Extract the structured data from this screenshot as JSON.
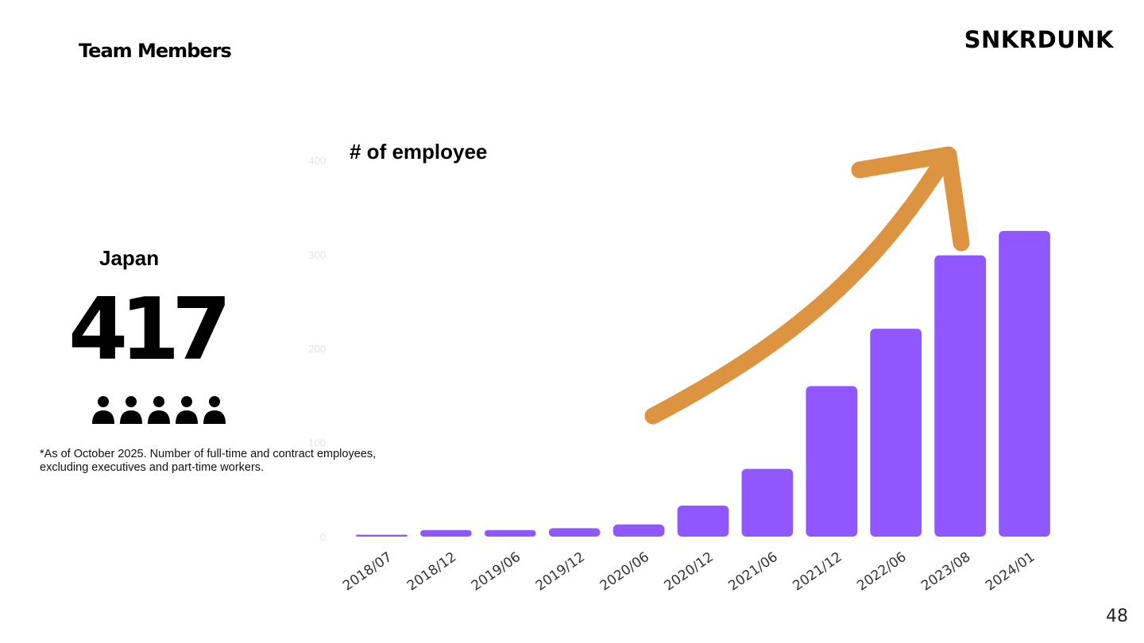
{
  "slide": {
    "title": "Team Members",
    "logo": "SNKRDUNK",
    "page_number": "48"
  },
  "summary": {
    "region": "Japan",
    "headcount": "417",
    "icon": "people-group-icon",
    "footnote_line1": "*As of October 2025. Number of full-time and contract employees,",
    "footnote_line2": "excluding executives and part-time workers."
  },
  "colors": {
    "bar": "#9057FF",
    "arrow": "#DD9441"
  },
  "chart_data": {
    "type": "bar",
    "title": "# of employee",
    "xlabel": "",
    "ylabel": "",
    "categories": [
      "2018/07",
      "2018/12",
      "2019/06",
      "2019/12",
      "2020/06",
      "2020/12",
      "2021/06",
      "2021/12",
      "2022/06",
      "2023/08",
      "2024/01"
    ],
    "values": [
      2,
      7,
      7,
      9,
      13,
      33,
      72,
      160,
      221,
      299,
      325
    ],
    "yticks": [
      0,
      100,
      200,
      300,
      400
    ],
    "ylim": [
      0,
      400
    ],
    "grid": false,
    "annotation": "upward trend arrow"
  }
}
